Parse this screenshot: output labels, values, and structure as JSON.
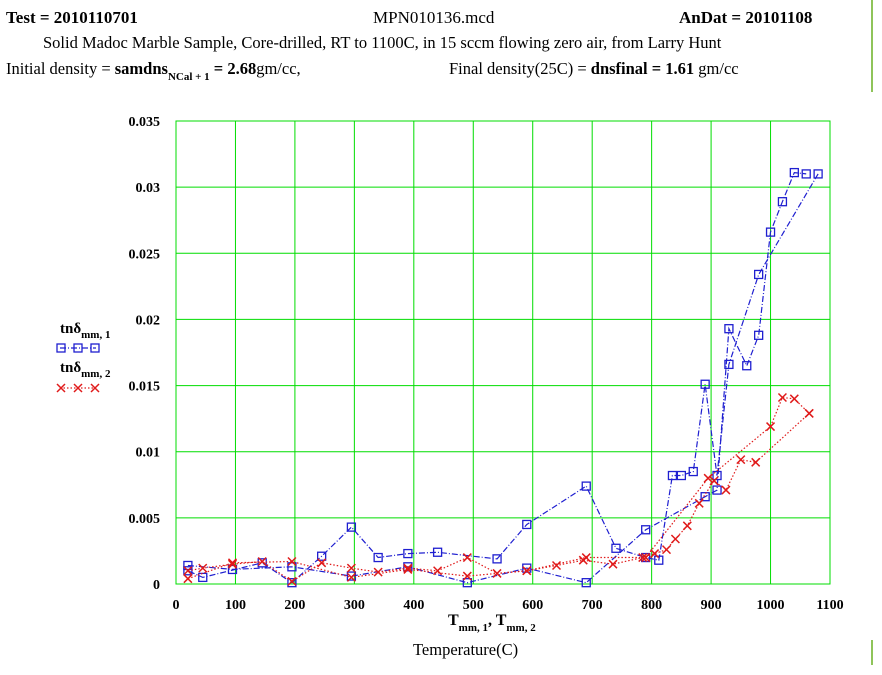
{
  "header": {
    "test_label": "Test = ",
    "test_value": "2010110701",
    "filename": "MPN010136.mcd",
    "andat_label": "AnDat = ",
    "andat_value": "20101108",
    "description": "Solid Madoc Marble Sample, Core-drilled, RT to 1100C, in 15 sccm flowing zero air, from Larry Hunt",
    "initial_density_label": "Initial density = ",
    "initial_var": "samdns",
    "initial_var_sub": "NCal + 1",
    "initial_value": " = 2.68",
    "initial_unit": "gm/cc,",
    "final_density_label": "Final density(25C) = ",
    "final_var": "dnsfinal",
    "final_value": " = 1.61",
    "final_unit": " gm/cc"
  },
  "colors": {
    "grid": "#00dd00",
    "series1": "#1f1fd0",
    "series2": "#e01a1a"
  },
  "chart_data": {
    "type": "line",
    "title": "",
    "xlabel": "T",
    "xlabel_sub1": "mm, 1",
    "xlabel_sep": ", T",
    "xlabel_sub2": "mm, 2",
    "xlabel_line2": "Temperature(C)",
    "xlim": [
      0,
      1100
    ],
    "ylim": [
      0,
      0.035
    ],
    "xticks": [
      0,
      100,
      200,
      300,
      400,
      500,
      600,
      700,
      800,
      900,
      1000,
      1100
    ],
    "yticks": [
      0,
      0.005,
      0.01,
      0.015,
      0.02,
      0.025,
      0.03,
      0.035
    ],
    "ytick_labels": [
      "0",
      "0.005",
      "0.01",
      "0.015",
      "0.02",
      "0.025",
      "0.03",
      "0.035"
    ],
    "grid": true,
    "legend_position": "left",
    "series": [
      {
        "name": "tnδ",
        "name_sub": "mm, 1",
        "marker": "square",
        "heating": {
          "x": [
            20,
            95,
            195,
            295,
            390,
            490,
            590,
            690,
            790,
            890,
            910,
            930,
            960,
            980,
            1000,
            1020,
            1040,
            1060
          ],
          "y": [
            0.0014,
            0.0011,
            0.0013,
            0.0006,
            0.0013,
            0.0001,
            0.0012,
            0.0001,
            0.0041,
            0.0066,
            0.0071,
            0.0193,
            0.0165,
            0.0188,
            0.0266,
            0.0289,
            0.0311,
            0.031
          ]
        },
        "cooling": {
          "x": [
            1080,
            980,
            930,
            910,
            890,
            870,
            850,
            835,
            812,
            790,
            740,
            690,
            590,
            540,
            440,
            390,
            340,
            295,
            245,
            195,
            145,
            45,
            20
          ],
          "y": [
            0.031,
            0.0234,
            0.0166,
            0.0082,
            0.0151,
            0.0085,
            0.0082,
            0.0082,
            0.0018,
            0.002,
            0.0027,
            0.0074,
            0.0045,
            0.0019,
            0.0024,
            0.0023,
            0.002,
            0.0043,
            0.0021,
            0.0001,
            0.0016,
            0.0005,
            0.001
          ]
        }
      },
      {
        "name": "tnδ",
        "name_sub": "mm, 2",
        "marker": "x",
        "heating": {
          "x": [
            20,
            95,
            195,
            295,
            390,
            490,
            590,
            690,
            790,
            895,
            1000,
            1020,
            1040,
            1065
          ],
          "y": [
            0.0004,
            0.0016,
            0.0017,
            0.0005,
            0.0011,
            0.0006,
            0.001,
            0.002,
            0.002,
            0.008,
            0.0119,
            0.0141,
            0.014,
            0.0129
          ]
        },
        "cooling": {
          "x": [
            1065,
            975,
            950,
            925,
            905,
            880,
            860,
            840,
            825,
            805,
            785,
            735,
            685,
            640,
            590,
            540,
            490,
            440,
            390,
            340,
            295,
            245,
            195,
            145,
            95,
            45,
            20
          ],
          "y": [
            0.0129,
            0.0092,
            0.0094,
            0.0071,
            0.0078,
            0.0061,
            0.0044,
            0.0034,
            0.0026,
            0.0023,
            0.002,
            0.0015,
            0.0018,
            0.0014,
            0.001,
            0.0008,
            0.002,
            0.001,
            0.0012,
            0.0009,
            0.0012,
            0.0016,
            0.0002,
            0.0017,
            0.0015,
            0.0012,
            0.001
          ]
        }
      }
    ]
  }
}
